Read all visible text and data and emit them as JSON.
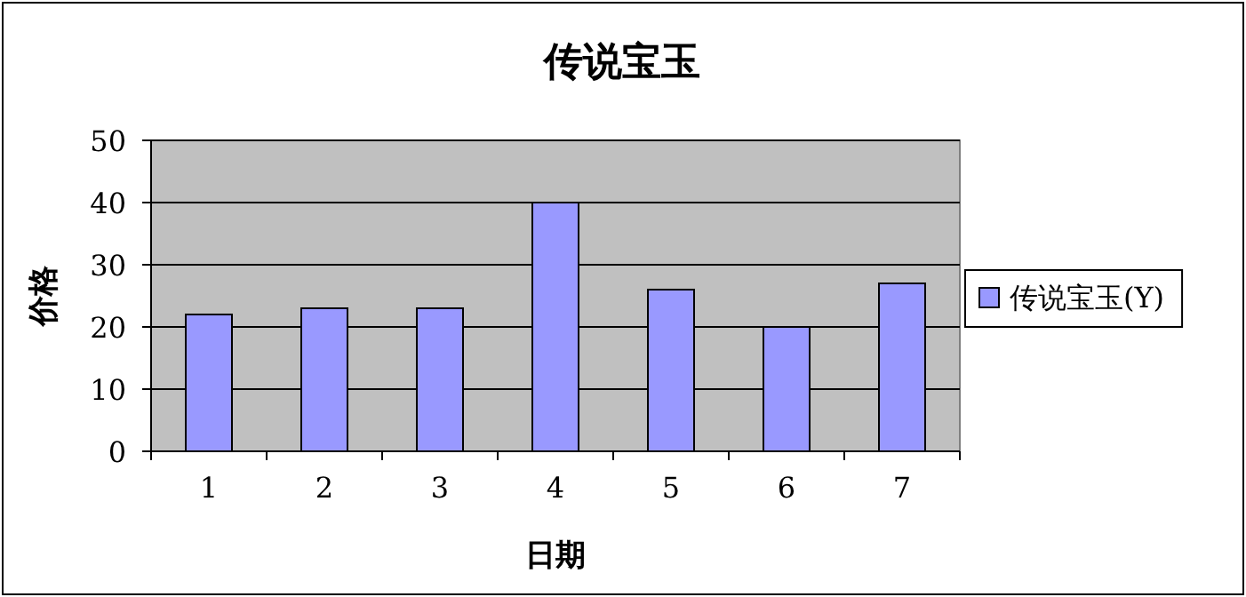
{
  "chart_data": {
    "type": "bar",
    "title": "传说宝玉",
    "xlabel": "日期",
    "ylabel": "价格",
    "categories": [
      "1",
      "2",
      "3",
      "4",
      "5",
      "6",
      "7"
    ],
    "series": [
      {
        "name": "传说宝玉(Y)",
        "color": "#9999ff",
        "values": [
          22,
          23,
          23,
          40,
          26,
          20,
          27
        ]
      }
    ],
    "ylim": [
      0,
      50
    ],
    "yticks": [
      0,
      10,
      20,
      30,
      40,
      50
    ],
    "grid": "y",
    "legend": "right"
  }
}
